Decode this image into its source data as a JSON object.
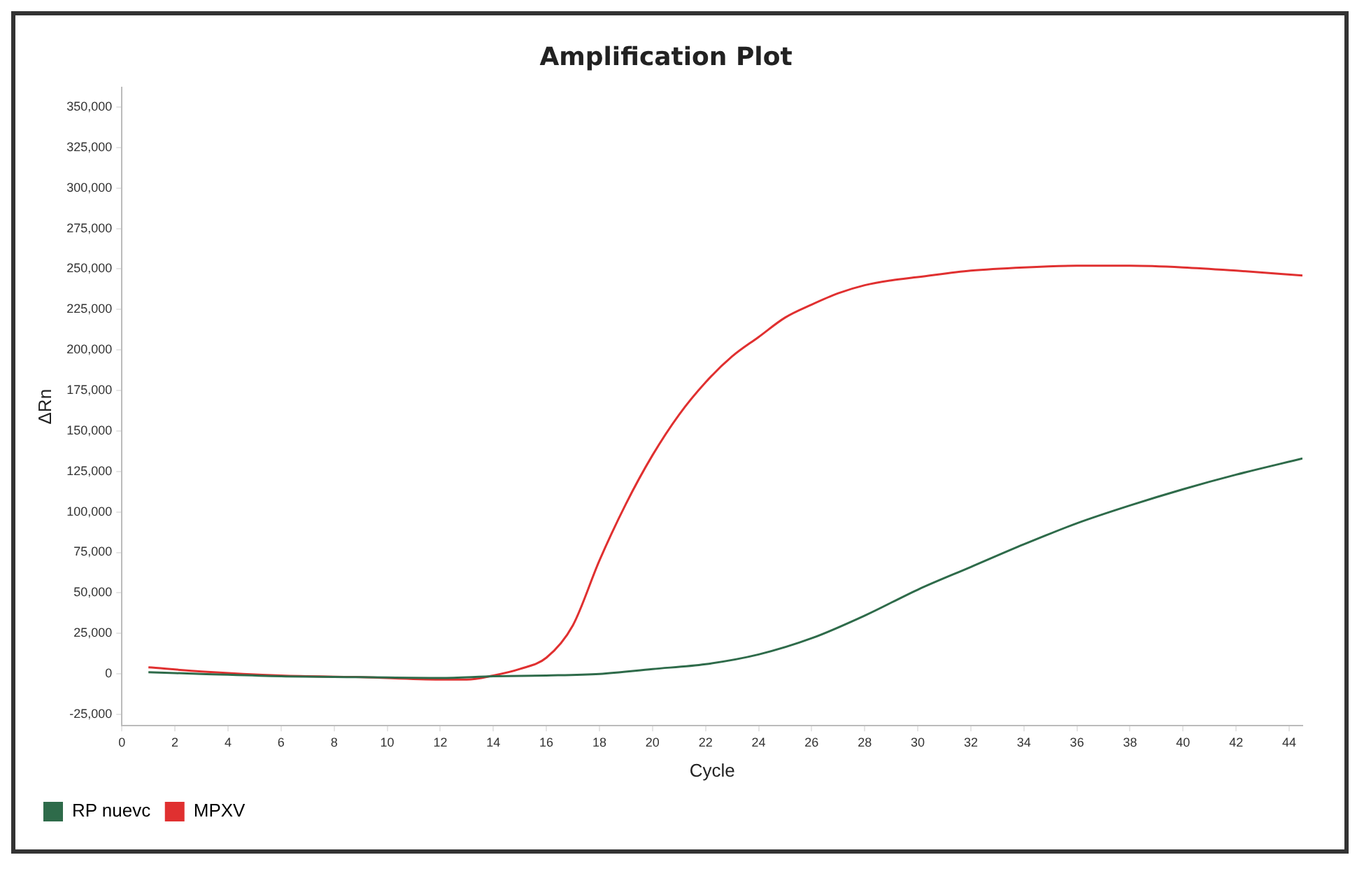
{
  "chart_data": {
    "type": "line",
    "title": "Amplification Plot",
    "xlabel": "Cycle",
    "ylabel": "ΔRn",
    "xlim": [
      0,
      44.5
    ],
    "xticks": [
      0,
      2,
      4,
      6,
      8,
      10,
      12,
      14,
      16,
      18,
      20,
      22,
      24,
      26,
      28,
      30,
      32,
      34,
      36,
      38,
      40,
      42,
      44
    ],
    "ylim": [
      -32000,
      362000
    ],
    "yticks": [
      {
        "value": -25000,
        "label": "-25,000"
      },
      0,
      {
        "value": 25000,
        "label": "25,000"
      },
      {
        "value": 50000,
        "label": "50,000"
      },
      {
        "value": 75000,
        "label": "75,000"
      },
      {
        "value": 100000,
        "label": "100,000"
      },
      {
        "value": 125000,
        "label": "125,000"
      },
      {
        "value": 150000,
        "label": "150,000"
      },
      {
        "value": 175000,
        "label": "175,000"
      },
      {
        "value": 200000,
        "label": "200,000"
      },
      {
        "value": 225000,
        "label": "225,000"
      },
      {
        "value": 250000,
        "label": "250,000"
      },
      {
        "value": 275000,
        "label": "275,000"
      },
      {
        "value": 300000,
        "label": "300,000"
      },
      {
        "value": 325000,
        "label": "325,000"
      },
      {
        "value": 350000,
        "label": "350,000"
      }
    ],
    "grid": false,
    "legend": "bottom left",
    "marker": "none",
    "line_style": "solid",
    "series": [
      {
        "name": "RP nuevc",
        "color": "#2e6b4a",
        "x": [
          1,
          3,
          6,
          9,
          12,
          14,
          16,
          18,
          20,
          22,
          24,
          26,
          28,
          30,
          32,
          34,
          36,
          38,
          40,
          42,
          44.5
        ],
        "values": [
          1000,
          0,
          -1500,
          -2000,
          -2500,
          -1500,
          -1000,
          0,
          3000,
          6000,
          12000,
          22000,
          36000,
          52000,
          66000,
          80000,
          93000,
          104000,
          114000,
          123000,
          133000
        ]
      },
      {
        "name": "MPXV",
        "color": "#e03030",
        "x": [
          1,
          3,
          6,
          9,
          12,
          13,
          14,
          15,
          16,
          17,
          18,
          19,
          20,
          21,
          22,
          23,
          24,
          25,
          26,
          27,
          28,
          29,
          30,
          32,
          34,
          36,
          38,
          40,
          42,
          44.5
        ],
        "values": [
          4000,
          1500,
          -1000,
          -2000,
          -3500,
          -3500,
          -1000,
          3000,
          10000,
          30000,
          70000,
          105000,
          135000,
          160000,
          180000,
          196000,
          208000,
          220000,
          228000,
          235000,
          240000,
          243000,
          245000,
          249000,
          251000,
          252000,
          252000,
          251000,
          249000,
          246000
        ]
      }
    ]
  }
}
